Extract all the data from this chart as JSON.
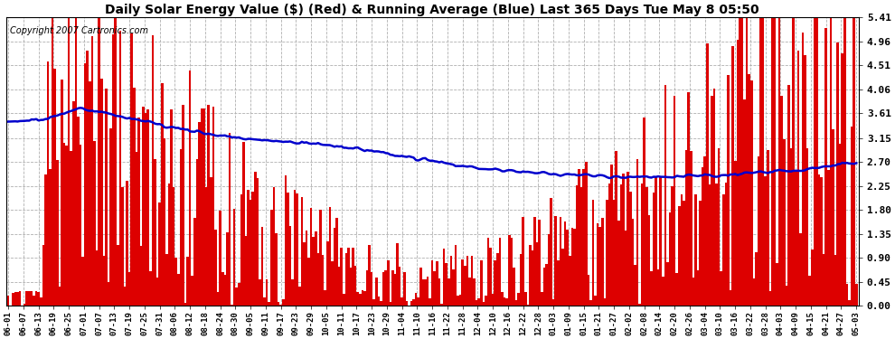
{
  "title": "Daily Solar Energy Value ($) (Red) & Running Average (Blue) Last 365 Days Tue May 8 05:50",
  "copyright": "Copyright 2007 Cartronics.com",
  "yticks": [
    0.0,
    0.45,
    0.9,
    1.35,
    1.8,
    2.25,
    2.7,
    3.15,
    3.61,
    4.06,
    4.51,
    4.96,
    5.41
  ],
  "ymax": 5.41,
  "bar_color": "#dd0000",
  "line_color": "#0000cc",
  "bg_color": "#ffffff",
  "grid_color": "#b0b0b0",
  "title_fontsize": 10,
  "copyright_fontsize": 7,
  "x_labels": [
    "06-01",
    "06-07",
    "06-13",
    "06-19",
    "06-25",
    "07-01",
    "07-07",
    "07-13",
    "07-19",
    "07-25",
    "07-31",
    "08-06",
    "08-12",
    "08-18",
    "08-24",
    "08-30",
    "09-05",
    "09-11",
    "09-17",
    "09-23",
    "09-29",
    "10-05",
    "10-11",
    "10-17",
    "10-23",
    "10-29",
    "11-04",
    "11-10",
    "11-16",
    "11-22",
    "11-28",
    "12-04",
    "12-10",
    "12-16",
    "12-22",
    "12-28",
    "01-03",
    "01-09",
    "01-15",
    "01-21",
    "01-27",
    "02-02",
    "02-08",
    "02-14",
    "02-20",
    "02-26",
    "03-04",
    "03-10",
    "03-16",
    "03-22",
    "03-28",
    "04-03",
    "04-09",
    "04-15",
    "04-21",
    "04-27",
    "05-03"
  ]
}
